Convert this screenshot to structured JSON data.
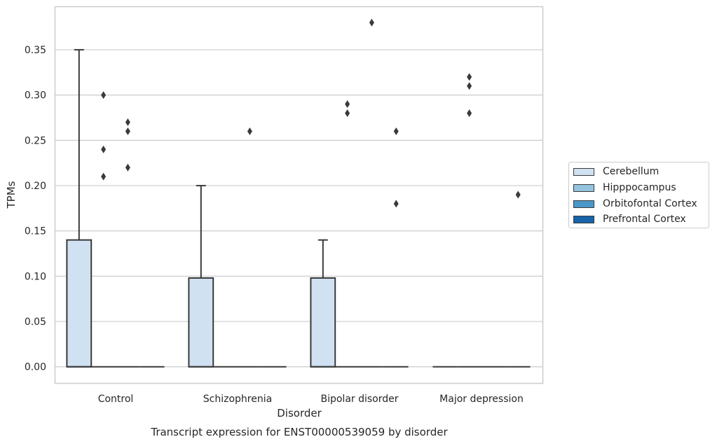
{
  "chart_data": {
    "type": "box",
    "title": "Transcript expression for ENST00000539059 by disorder",
    "xlabel": "Disorder",
    "ylabel": "TPMs",
    "ylim": [
      -0.018,
      0.398
    ],
    "yticks": [
      "0.00",
      "0.05",
      "0.10",
      "0.15",
      "0.20",
      "0.25",
      "0.30",
      "0.35"
    ],
    "ytick_values": [
      0.0,
      0.05,
      0.1,
      0.15,
      0.2,
      0.25,
      0.3,
      0.35
    ],
    "grid": true,
    "legend_position": "right",
    "categories": [
      "Control",
      "Schizophrenia",
      "Bipolar disorder",
      "Major depression"
    ],
    "series": [
      {
        "name": "Cerebellum",
        "color": "#d0e1f2",
        "boxes": [
          {
            "q1": 0.0,
            "median": 0.0,
            "q3": 0.14,
            "whisker_low": 0.0,
            "whisker_high": 0.35,
            "outliers": []
          },
          {
            "q1": 0.0,
            "median": 0.0,
            "q3": 0.098,
            "whisker_low": 0.0,
            "whisker_high": 0.2,
            "outliers": []
          },
          {
            "q1": 0.0,
            "median": 0.0,
            "q3": 0.098,
            "whisker_low": 0.0,
            "whisker_high": 0.14,
            "outliers": []
          },
          {
            "q1": 0.0,
            "median": 0.0,
            "q3": 0.0,
            "whisker_low": 0.0,
            "whisker_high": 0.0,
            "outliers": []
          }
        ]
      },
      {
        "name": "Hipppocampus",
        "color": "#94c4df",
        "boxes": [
          {
            "q1": 0.0,
            "median": 0.0,
            "q3": 0.0,
            "whisker_low": 0.0,
            "whisker_high": 0.0,
            "outliers": [
              0.21,
              0.24,
              0.3
            ]
          },
          {
            "q1": 0.0,
            "median": 0.0,
            "q3": 0.0,
            "whisker_low": 0.0,
            "whisker_high": 0.0,
            "outliers": []
          },
          {
            "q1": 0.0,
            "median": 0.0,
            "q3": 0.0,
            "whisker_low": 0.0,
            "whisker_high": 0.0,
            "outliers": [
              0.28,
              0.29
            ]
          },
          {
            "q1": 0.0,
            "median": 0.0,
            "q3": 0.0,
            "whisker_low": 0.0,
            "whisker_high": 0.0,
            "outliers": [
              0.28,
              0.31,
              0.32
            ]
          }
        ]
      },
      {
        "name": "Orbitofontal Cortex",
        "color": "#4a98c9",
        "boxes": [
          {
            "q1": 0.0,
            "median": 0.0,
            "q3": 0.0,
            "whisker_low": 0.0,
            "whisker_high": 0.0,
            "outliers": [
              0.22,
              0.26,
              0.27
            ]
          },
          {
            "q1": 0.0,
            "median": 0.0,
            "q3": 0.0,
            "whisker_low": 0.0,
            "whisker_high": 0.0,
            "outliers": [
              0.26
            ]
          },
          {
            "q1": 0.0,
            "median": 0.0,
            "q3": 0.0,
            "whisker_low": 0.0,
            "whisker_high": 0.0,
            "outliers": [
              0.38
            ]
          },
          {
            "q1": 0.0,
            "median": 0.0,
            "q3": 0.0,
            "whisker_low": 0.0,
            "whisker_high": 0.0,
            "outliers": []
          }
        ]
      },
      {
        "name": "Prefrontal Cortex",
        "color": "#1764ab",
        "boxes": [
          {
            "q1": 0.0,
            "median": 0.0,
            "q3": 0.0,
            "whisker_low": 0.0,
            "whisker_high": 0.0,
            "outliers": []
          },
          {
            "q1": 0.0,
            "median": 0.0,
            "q3": 0.0,
            "whisker_low": 0.0,
            "whisker_high": 0.0,
            "outliers": []
          },
          {
            "q1": 0.0,
            "median": 0.0,
            "q3": 0.0,
            "whisker_low": 0.0,
            "whisker_high": 0.0,
            "outliers": [
              0.18,
              0.26
            ]
          },
          {
            "q1": 0.0,
            "median": 0.0,
            "q3": 0.0,
            "whisker_low": 0.0,
            "whisker_high": 0.0,
            "outliers": [
              0.19
            ]
          }
        ]
      }
    ]
  },
  "legend": {
    "items": [
      "Cerebellum",
      "Hipppocampus",
      "Orbitofontal Cortex",
      "Prefrontal Cortex"
    ],
    "colors": [
      "#d0e1f2",
      "#94c4df",
      "#4a98c9",
      "#1764ab"
    ]
  },
  "colors": {
    "grid": "#cccccc",
    "frame": "#cccccc",
    "box_edge": "#3a3a3a",
    "text": "#262626"
  }
}
